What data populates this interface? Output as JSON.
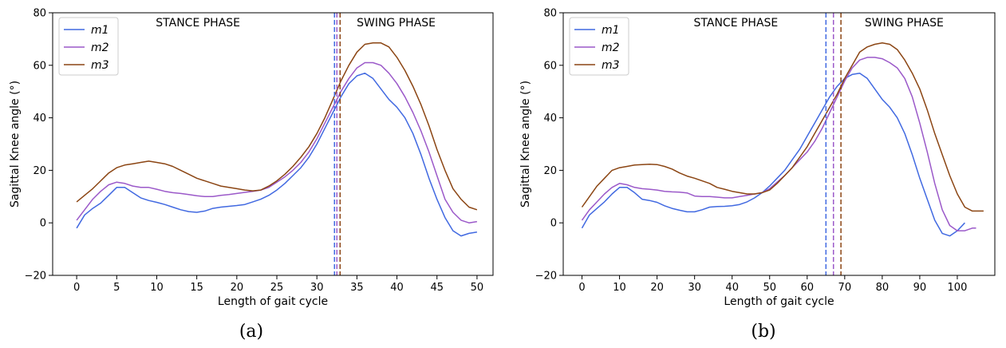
{
  "figure": {
    "panel_labels": [
      "(a)",
      "(b)"
    ]
  },
  "colors": {
    "m1": "#4169e1",
    "m2": "#9b59c9",
    "m3": "#8b4513"
  },
  "chart_data": [
    {
      "type": "line",
      "panel": "(a)",
      "xlabel": "Length of gait cycle",
      "ylabel": "Sagittal Knee angle (°)",
      "xlim": [
        -3,
        52
      ],
      "ylim": [
        -20,
        80
      ],
      "xticks": [
        0,
        5,
        10,
        15,
        20,
        25,
        30,
        35,
        40,
        45,
        50
      ],
      "yticks": [
        -20,
        0,
        20,
        40,
        60,
        80
      ],
      "grid": false,
      "legend": "top-left",
      "annotations": [
        "STANCE PHASE",
        "SWING PHASE"
      ],
      "vlines": [
        {
          "series": "m1",
          "x": 32.2
        },
        {
          "series": "m2",
          "x": 32.5
        },
        {
          "series": "m3",
          "x": 32.9
        }
      ],
      "series": [
        {
          "name": "m1",
          "x": [
            0,
            1,
            2,
            3,
            4,
            5,
            6,
            7,
            8,
            9,
            10,
            11,
            12,
            13,
            14,
            15,
            16,
            17,
            18,
            19,
            20,
            21,
            22,
            23,
            24,
            25,
            26,
            27,
            28,
            29,
            30,
            31,
            32,
            33,
            34,
            35,
            36,
            37,
            38,
            39,
            40,
            41,
            42,
            43,
            44,
            45,
            46,
            47,
            48,
            49,
            50
          ],
          "values": [
            -2,
            3,
            5.5,
            7.5,
            10.5,
            13.5,
            13.5,
            11.5,
            9.5,
            8.5,
            7.8,
            7,
            6,
            5,
            4.3,
            4,
            4.5,
            5.5,
            6,
            6.3,
            6.6,
            7,
            8,
            9,
            10.5,
            12.5,
            15,
            18,
            21,
            25,
            30,
            36,
            42,
            48,
            53,
            56,
            57,
            55,
            51,
            47,
            44,
            40,
            34,
            26,
            17,
            9,
            2,
            -3,
            -5,
            -4,
            -3.5
          ]
        },
        {
          "name": "m2",
          "x": [
            0,
            1,
            2,
            3,
            4,
            5,
            6,
            7,
            8,
            9,
            10,
            11,
            12,
            13,
            14,
            15,
            16,
            17,
            18,
            19,
            20,
            21,
            22,
            23,
            24,
            25,
            26,
            27,
            28,
            29,
            30,
            31,
            32,
            33,
            34,
            35,
            36,
            37,
            38,
            39,
            40,
            41,
            42,
            43,
            44,
            45,
            46,
            47,
            48,
            49,
            50
          ],
          "values": [
            1,
            5,
            9,
            12,
            14.5,
            15.5,
            15,
            14,
            13.5,
            13.5,
            12.8,
            12,
            11.5,
            11.2,
            10.8,
            10.3,
            10,
            10,
            10.5,
            10.8,
            11.2,
            11.6,
            12,
            12.5,
            13.5,
            15.5,
            17.5,
            20,
            23,
            27,
            32,
            38,
            44,
            50,
            55,
            59,
            61,
            61,
            60,
            57,
            53,
            48,
            42,
            35,
            27,
            18,
            9,
            4,
            1,
            0,
            0.5
          ]
        },
        {
          "name": "m3",
          "x": [
            0,
            1,
            2,
            3,
            4,
            5,
            6,
            7,
            8,
            9,
            10,
            11,
            12,
            13,
            14,
            15,
            16,
            17,
            18,
            19,
            20,
            21,
            22,
            23,
            24,
            25,
            26,
            27,
            28,
            29,
            30,
            31,
            32,
            33,
            34,
            35,
            36,
            37,
            38,
            39,
            40,
            41,
            42,
            43,
            44,
            45,
            46,
            47,
            48,
            49,
            50
          ],
          "values": [
            8,
            10.5,
            13,
            16,
            19,
            21,
            22,
            22.5,
            23,
            23.5,
            23,
            22.5,
            21.5,
            20,
            18.5,
            17,
            16,
            15,
            14,
            13.5,
            13,
            12.5,
            12.2,
            12.5,
            14,
            16,
            18.5,
            21.5,
            25,
            29,
            34,
            40,
            47,
            54,
            60,
            65,
            68,
            68.5,
            68.5,
            67,
            63,
            58,
            52,
            45,
            37,
            28,
            20,
            13,
            9,
            6,
            5
          ]
        }
      ]
    },
    {
      "type": "line",
      "panel": "(b)",
      "xlabel": "Length of gait cycle",
      "ylabel": "Sagittal Knee angle (°)",
      "xlim": [
        -5,
        110
      ],
      "ylim": [
        -20,
        80
      ],
      "xticks": [
        0,
        10,
        20,
        30,
        40,
        50,
        60,
        70,
        80,
        90,
        100
      ],
      "yticks": [
        -20,
        0,
        20,
        40,
        60,
        80
      ],
      "grid": false,
      "legend": "top-left",
      "annotations": [
        "STANCE PHASE",
        "SWING PHASE"
      ],
      "vlines": [
        {
          "series": "m1",
          "x": 65
        },
        {
          "series": "m2",
          "x": 67
        },
        {
          "series": "m3",
          "x": 69
        }
      ],
      "series": [
        {
          "name": "m1",
          "x": [
            0,
            2,
            4,
            6,
            8,
            10,
            12,
            14,
            16,
            18,
            20,
            22,
            24,
            26,
            28,
            30,
            32,
            34,
            36,
            38,
            40,
            42,
            44,
            46,
            48,
            50,
            52,
            54,
            56,
            58,
            60,
            62,
            64,
            66,
            68,
            70,
            72,
            74,
            76,
            78,
            80,
            82,
            84,
            86,
            88,
            90,
            92,
            94,
            96,
            98,
            100,
            102
          ],
          "values": [
            -2,
            3,
            5.5,
            8,
            11,
            13.5,
            13.5,
            11.5,
            9,
            8.5,
            7.8,
            6.5,
            5.5,
            4.8,
            4.2,
            4.2,
            5,
            6,
            6.2,
            6.3,
            6.5,
            7,
            8,
            9.5,
            11.5,
            14,
            17,
            20,
            24,
            28,
            33,
            38,
            43,
            48,
            52,
            55,
            56.5,
            57,
            55,
            51,
            47,
            44,
            40,
            34,
            26,
            17,
            9,
            1,
            -4,
            -5,
            -3,
            0
          ]
        },
        {
          "name": "m2",
          "x": [
            0,
            2,
            4,
            6,
            8,
            10,
            12,
            14,
            16,
            18,
            20,
            22,
            24,
            26,
            28,
            30,
            32,
            34,
            36,
            38,
            40,
            42,
            44,
            46,
            48,
            50,
            52,
            54,
            56,
            58,
            60,
            62,
            64,
            66,
            68,
            70,
            72,
            74,
            76,
            78,
            80,
            82,
            84,
            86,
            88,
            90,
            92,
            94,
            96,
            98,
            100,
            102,
            104,
            105
          ],
          "values": [
            1,
            5,
            8,
            11,
            13.5,
            15,
            14.5,
            13.5,
            13,
            12.8,
            12.5,
            12,
            11.8,
            11.7,
            11.4,
            10.2,
            10,
            10,
            9.8,
            9.5,
            9.5,
            10,
            10.5,
            11,
            11.5,
            13,
            15.5,
            18,
            21,
            24,
            27,
            31,
            36,
            42,
            48,
            54,
            59,
            62,
            63,
            63,
            62.5,
            61,
            59,
            55,
            48,
            38,
            27,
            15,
            5,
            -1,
            -3,
            -3,
            -2,
            -2
          ]
        },
        {
          "name": "m3",
          "x": [
            0,
            2,
            4,
            6,
            8,
            10,
            12,
            14,
            16,
            18,
            20,
            22,
            24,
            26,
            28,
            30,
            32,
            34,
            36,
            38,
            40,
            42,
            44,
            46,
            48,
            50,
            52,
            54,
            56,
            58,
            60,
            62,
            64,
            66,
            68,
            70,
            72,
            74,
            76,
            78,
            80,
            82,
            84,
            86,
            88,
            90,
            92,
            94,
            96,
            98,
            100,
            102,
            104,
            106,
            107
          ],
          "values": [
            6,
            10,
            14,
            17,
            20,
            21,
            21.5,
            22,
            22.2,
            22.3,
            22.2,
            21.5,
            20.5,
            19,
            17.8,
            17,
            16,
            15,
            13.5,
            12.8,
            12,
            11.5,
            11,
            11,
            11.5,
            12.5,
            15,
            18,
            21,
            25,
            29,
            34,
            39,
            44,
            49,
            55,
            60,
            65,
            67,
            68,
            68.5,
            68,
            66,
            62,
            57,
            51,
            43,
            34,
            26,
            18,
            11,
            6,
            4.5,
            4.5,
            4.5
          ]
        }
      ]
    }
  ]
}
